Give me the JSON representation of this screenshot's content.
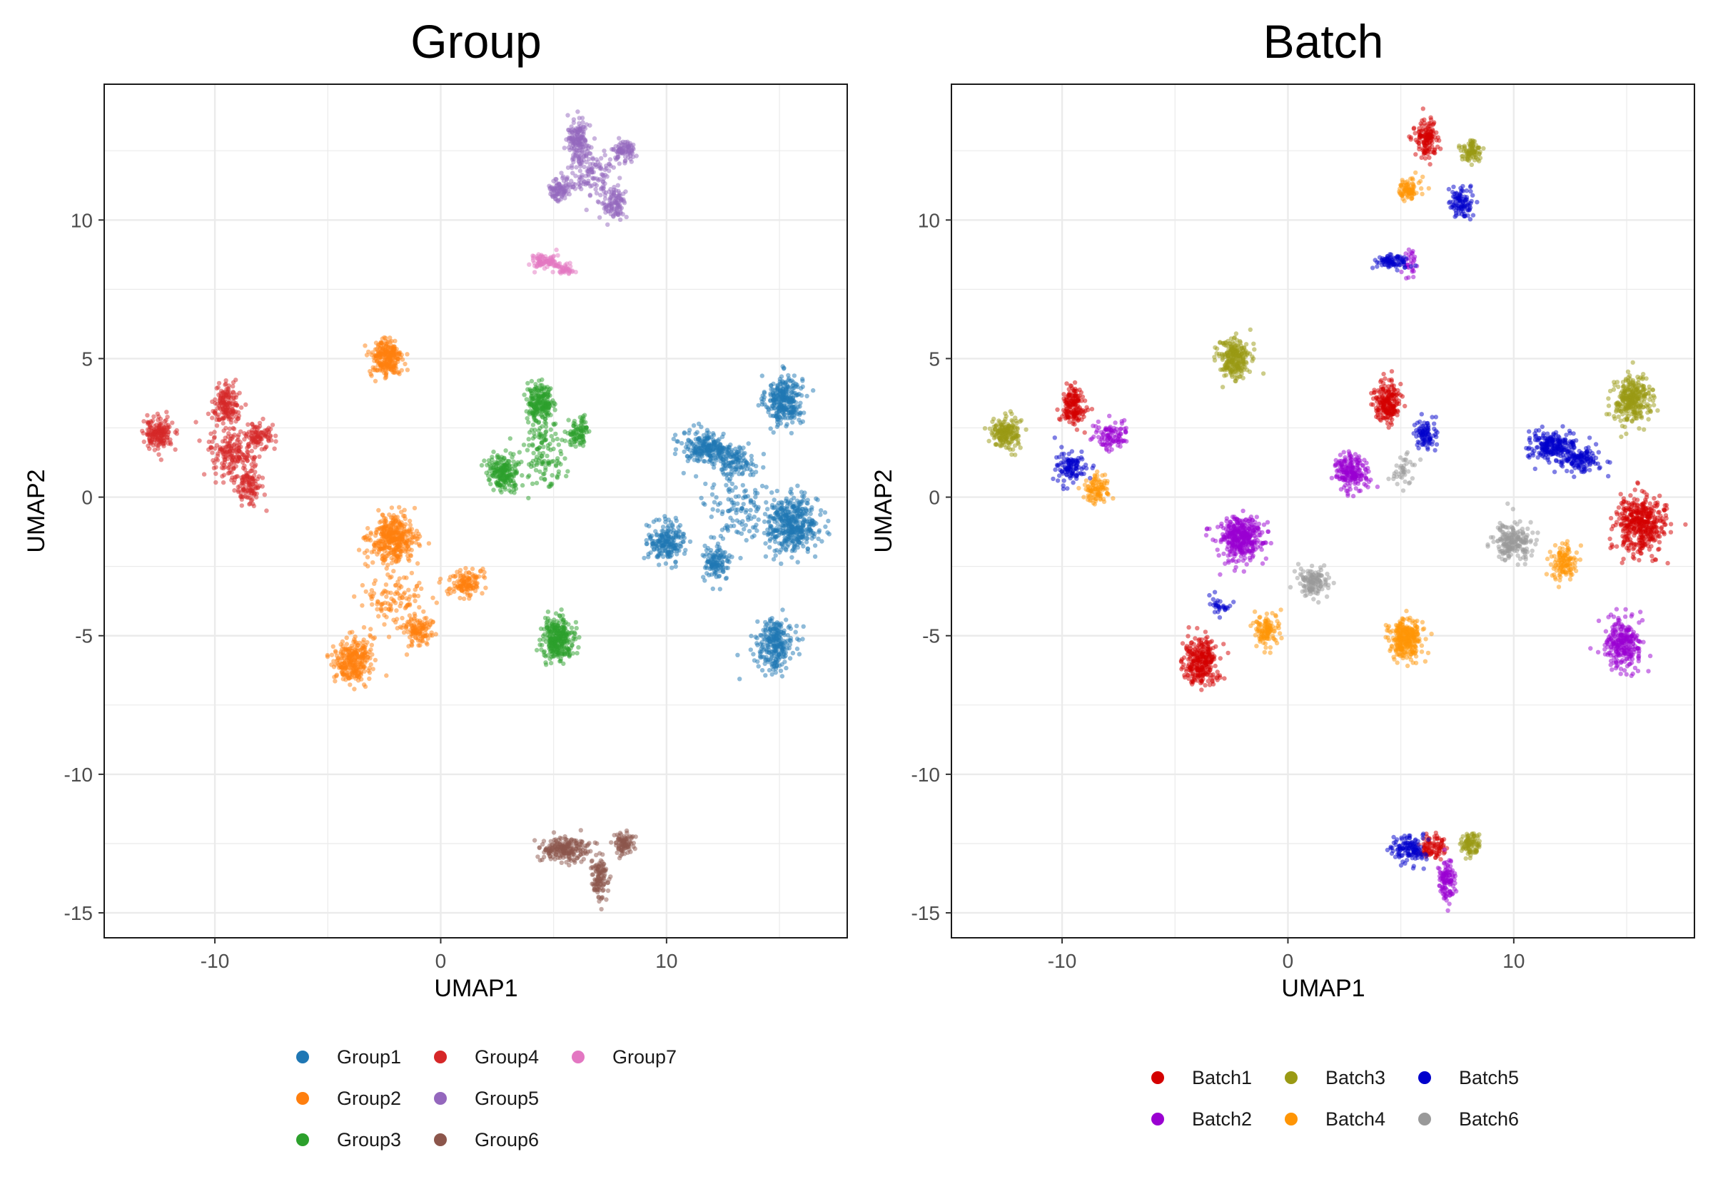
{
  "chart_data": [
    {
      "type": "scatter",
      "title": "Group",
      "xlabel": "UMAP1",
      "ylabel": "UMAP2",
      "xlim": [
        -14.9,
        18.0
      ],
      "ylim": [
        -15.9,
        14.9
      ],
      "xticks": [
        -10,
        0,
        10
      ],
      "yticks": [
        -15,
        -10,
        -5,
        0,
        5,
        10
      ],
      "grid": true,
      "legend_position": "bottom",
      "legend_columns": 3,
      "series": [
        {
          "name": "Group1",
          "color": "#1F77B4",
          "clusters": [
            {
              "x": 15.2,
              "y": 3.5,
              "sx": 0.4,
              "sy": 0.45,
              "n": 300
            },
            {
              "x": 11.8,
              "y": 1.8,
              "sx": 0.55,
              "sy": 0.28,
              "n": 230
            },
            {
              "x": 13.0,
              "y": 1.3,
              "sx": 0.45,
              "sy": 0.25,
              "n": 120
            },
            {
              "x": 15.6,
              "y": -1.0,
              "sx": 0.55,
              "sy": 0.5,
              "n": 420
            },
            {
              "x": 10.0,
              "y": -1.6,
              "sx": 0.4,
              "sy": 0.35,
              "n": 200
            },
            {
              "x": 12.2,
              "y": -2.4,
              "sx": 0.3,
              "sy": 0.3,
              "n": 120
            },
            {
              "x": 14.8,
              "y": -5.3,
              "sx": 0.4,
              "sy": 0.45,
              "n": 260
            },
            {
              "x": 13.2,
              "y": -0.4,
              "sx": 0.9,
              "sy": 0.8,
              "n": 130
            }
          ]
        },
        {
          "name": "Group2",
          "color": "#FF7F0E",
          "clusters": [
            {
              "x": -2.4,
              "y": 5.0,
              "sx": 0.35,
              "sy": 0.35,
              "n": 250
            },
            {
              "x": -2.1,
              "y": -1.5,
              "sx": 0.5,
              "sy": 0.4,
              "n": 380
            },
            {
              "x": -2.0,
              "y": -3.6,
              "sx": 0.7,
              "sy": 0.6,
              "n": 120
            },
            {
              "x": 1.1,
              "y": -3.1,
              "sx": 0.35,
              "sy": 0.25,
              "n": 130
            },
            {
              "x": -1.0,
              "y": -4.8,
              "sx": 0.3,
              "sy": 0.3,
              "n": 110
            },
            {
              "x": -3.9,
              "y": -5.9,
              "sx": 0.4,
              "sy": 0.4,
              "n": 280
            }
          ]
        },
        {
          "name": "Group3",
          "color": "#2CA02C",
          "clusters": [
            {
              "x": 4.4,
              "y": 3.4,
              "sx": 0.28,
              "sy": 0.35,
              "n": 210
            },
            {
              "x": 6.1,
              "y": 2.3,
              "sx": 0.25,
              "sy": 0.25,
              "n": 90
            },
            {
              "x": 2.8,
              "y": 0.9,
              "sx": 0.35,
              "sy": 0.3,
              "n": 200
            },
            {
              "x": 4.5,
              "y": 1.6,
              "sx": 0.5,
              "sy": 0.6,
              "n": 120
            },
            {
              "x": 5.2,
              "y": -5.1,
              "sx": 0.35,
              "sy": 0.35,
              "n": 300
            }
          ]
        },
        {
          "name": "Group4",
          "color": "#D62728",
          "clusters": [
            {
              "x": -12.5,
              "y": 2.3,
              "sx": 0.32,
              "sy": 0.28,
              "n": 180
            },
            {
              "x": -9.5,
              "y": 3.3,
              "sx": 0.28,
              "sy": 0.35,
              "n": 160
            },
            {
              "x": -9.2,
              "y": 1.6,
              "sx": 0.55,
              "sy": 0.45,
              "n": 200
            },
            {
              "x": -8.0,
              "y": 2.2,
              "sx": 0.3,
              "sy": 0.25,
              "n": 90
            },
            {
              "x": -8.5,
              "y": 0.3,
              "sx": 0.25,
              "sy": 0.3,
              "n": 100
            }
          ]
        },
        {
          "name": "Group5",
          "color": "#9467BD",
          "clusters": [
            {
              "x": 6.1,
              "y": 12.9,
              "sx": 0.25,
              "sy": 0.35,
              "n": 140
            },
            {
              "x": 8.1,
              "y": 12.5,
              "sx": 0.25,
              "sy": 0.2,
              "n": 90
            },
            {
              "x": 5.3,
              "y": 11.1,
              "sx": 0.25,
              "sy": 0.2,
              "n": 90
            },
            {
              "x": 7.7,
              "y": 10.6,
              "sx": 0.25,
              "sy": 0.3,
              "n": 100
            },
            {
              "x": 6.6,
              "y": 11.7,
              "sx": 0.45,
              "sy": 0.45,
              "n": 130
            }
          ]
        },
        {
          "name": "Group6",
          "color": "#8C564B",
          "clusters": [
            {
              "x": 5.5,
              "y": -12.7,
              "sx": 0.55,
              "sy": 0.22,
              "n": 220
            },
            {
              "x": 8.1,
              "y": -12.5,
              "sx": 0.22,
              "sy": 0.2,
              "n": 90
            },
            {
              "x": 7.0,
              "y": -13.8,
              "sx": 0.18,
              "sy": 0.4,
              "n": 110
            }
          ]
        },
        {
          "name": "Group7",
          "color": "#E377C2",
          "clusters": [
            {
              "x": 4.6,
              "y": 8.5,
              "sx": 0.35,
              "sy": 0.12,
              "n": 90
            },
            {
              "x": 5.5,
              "y": 8.2,
              "sx": 0.2,
              "sy": 0.1,
              "n": 40
            }
          ]
        }
      ]
    },
    {
      "type": "scatter",
      "title": "Batch",
      "xlabel": "UMAP1",
      "ylabel": "UMAP2",
      "xlim": [
        -14.9,
        18.0
      ],
      "ylim": [
        -15.9,
        14.9
      ],
      "xticks": [
        -10,
        0,
        10
      ],
      "yticks": [
        -15,
        -10,
        -5,
        0,
        5,
        10
      ],
      "grid": true,
      "legend_position": "bottom",
      "legend_columns": 3,
      "series": [
        {
          "name": "Batch1",
          "color": "#D40000",
          "clusters": [
            {
              "x": 6.1,
              "y": 12.9,
              "sx": 0.25,
              "sy": 0.35,
              "n": 140
            },
            {
              "x": -9.5,
              "y": 3.3,
              "sx": 0.28,
              "sy": 0.35,
              "n": 160
            },
            {
              "x": 4.4,
              "y": 3.4,
              "sx": 0.28,
              "sy": 0.35,
              "n": 210
            },
            {
              "x": 15.6,
              "y": -1.0,
              "sx": 0.55,
              "sy": 0.5,
              "n": 420
            },
            {
              "x": -3.9,
              "y": -5.9,
              "sx": 0.4,
              "sy": 0.4,
              "n": 280
            },
            {
              "x": 6.4,
              "y": -12.6,
              "sx": 0.3,
              "sy": 0.2,
              "n": 90
            }
          ]
        },
        {
          "name": "Batch2",
          "color": "#9A00D1",
          "clusters": [
            {
              "x": -7.8,
              "y": 2.2,
              "sx": 0.35,
              "sy": 0.25,
              "n": 100
            },
            {
              "x": 2.8,
              "y": 0.9,
              "sx": 0.35,
              "sy": 0.3,
              "n": 200
            },
            {
              "x": -2.1,
              "y": -1.5,
              "sx": 0.5,
              "sy": 0.4,
              "n": 380
            },
            {
              "x": 14.8,
              "y": -5.3,
              "sx": 0.4,
              "sy": 0.45,
              "n": 260
            },
            {
              "x": 7.0,
              "y": -13.8,
              "sx": 0.18,
              "sy": 0.4,
              "n": 110
            },
            {
              "x": 5.4,
              "y": 8.5,
              "sx": 0.2,
              "sy": 0.25,
              "n": 30
            }
          ]
        },
        {
          "name": "Batch3",
          "color": "#9A9A14",
          "clusters": [
            {
              "x": 8.1,
              "y": 12.5,
              "sx": 0.25,
              "sy": 0.2,
              "n": 90
            },
            {
              "x": -2.4,
              "y": 5.0,
              "sx": 0.35,
              "sy": 0.35,
              "n": 250
            },
            {
              "x": -12.5,
              "y": 2.3,
              "sx": 0.32,
              "sy": 0.28,
              "n": 180
            },
            {
              "x": 15.2,
              "y": 3.5,
              "sx": 0.4,
              "sy": 0.45,
              "n": 300
            },
            {
              "x": 8.1,
              "y": -12.5,
              "sx": 0.22,
              "sy": 0.2,
              "n": 90
            }
          ]
        },
        {
          "name": "Batch4",
          "color": "#FF9505",
          "clusters": [
            {
              "x": 5.3,
              "y": 11.1,
              "sx": 0.25,
              "sy": 0.2,
              "n": 90
            },
            {
              "x": -8.5,
              "y": 0.3,
              "sx": 0.25,
              "sy": 0.3,
              "n": 100
            },
            {
              "x": -1.0,
              "y": -4.8,
              "sx": 0.3,
              "sy": 0.3,
              "n": 110
            },
            {
              "x": 5.2,
              "y": -5.1,
              "sx": 0.35,
              "sy": 0.35,
              "n": 300
            },
            {
              "x": 12.2,
              "y": -2.4,
              "sx": 0.3,
              "sy": 0.3,
              "n": 120
            }
          ]
        },
        {
          "name": "Batch5",
          "color": "#0000CC",
          "clusters": [
            {
              "x": 7.7,
              "y": 10.6,
              "sx": 0.25,
              "sy": 0.3,
              "n": 100
            },
            {
              "x": 4.6,
              "y": 8.5,
              "sx": 0.35,
              "sy": 0.12,
              "n": 90
            },
            {
              "x": -9.6,
              "y": 1.1,
              "sx": 0.35,
              "sy": 0.3,
              "n": 110
            },
            {
              "x": 6.1,
              "y": 2.3,
              "sx": 0.25,
              "sy": 0.25,
              "n": 90
            },
            {
              "x": 11.8,
              "y": 1.8,
              "sx": 0.55,
              "sy": 0.28,
              "n": 230
            },
            {
              "x": 13.0,
              "y": 1.3,
              "sx": 0.45,
              "sy": 0.25,
              "n": 120
            },
            {
              "x": 5.3,
              "y": -12.7,
              "sx": 0.4,
              "sy": 0.22,
              "n": 130
            },
            {
              "x": -3.0,
              "y": -3.9,
              "sx": 0.25,
              "sy": 0.2,
              "n": 30
            }
          ]
        },
        {
          "name": "Batch6",
          "color": "#999999",
          "clusters": [
            {
              "x": 1.1,
              "y": -3.1,
              "sx": 0.35,
              "sy": 0.25,
              "n": 130
            },
            {
              "x": 10.0,
              "y": -1.6,
              "sx": 0.4,
              "sy": 0.35,
              "n": 200
            },
            {
              "x": 5.1,
              "y": 1.0,
              "sx": 0.3,
              "sy": 0.3,
              "n": 40
            }
          ]
        }
      ]
    }
  ]
}
